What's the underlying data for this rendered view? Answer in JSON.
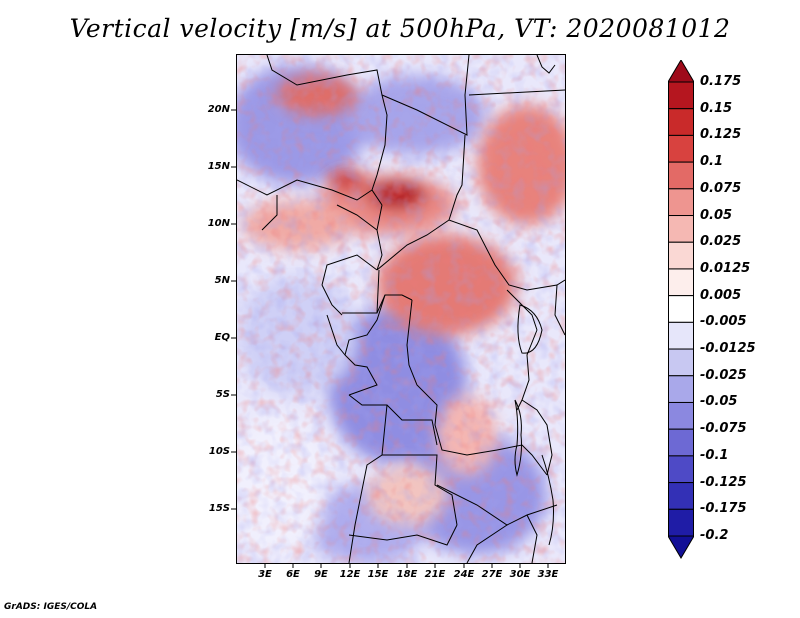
{
  "title": "Vertical velocity [m/s] at 500hPa, VT: 2020081012",
  "footer": "GrADS: IGES/COLA",
  "map": {
    "lat_labels": [
      "20N",
      "15N",
      "10N",
      "5N",
      "EQ",
      "5S",
      "10S",
      "15S"
    ],
    "lon_labels": [
      "3E",
      "6E",
      "9E",
      "12E",
      "15E",
      "18E",
      "21E",
      "24E",
      "27E",
      "30E",
      "33E"
    ]
  },
  "colorbar": {
    "labels": [
      "0.175",
      "0.15",
      "0.125",
      "0.1",
      "0.075",
      "0.05",
      "0.025",
      "0.0125",
      "0.005",
      "-0.005",
      "-0.0125",
      "-0.025",
      "-0.05",
      "-0.075",
      "-0.1",
      "-0.125",
      "-0.175",
      "-0.2"
    ],
    "colors": [
      "#9e0a1a",
      "#b5161f",
      "#c92a2a",
      "#d8423f",
      "#e36a66",
      "#ee9590",
      "#f5b8b3",
      "#fad8d4",
      "#fdeeec",
      "#ffffff",
      "#e6e6fa",
      "#c8c8f2",
      "#a9a8ea",
      "#8b88e0",
      "#6d69d4",
      "#4e4ac6",
      "#3330b6",
      "#1f1ca6",
      "#120f96"
    ]
  }
}
